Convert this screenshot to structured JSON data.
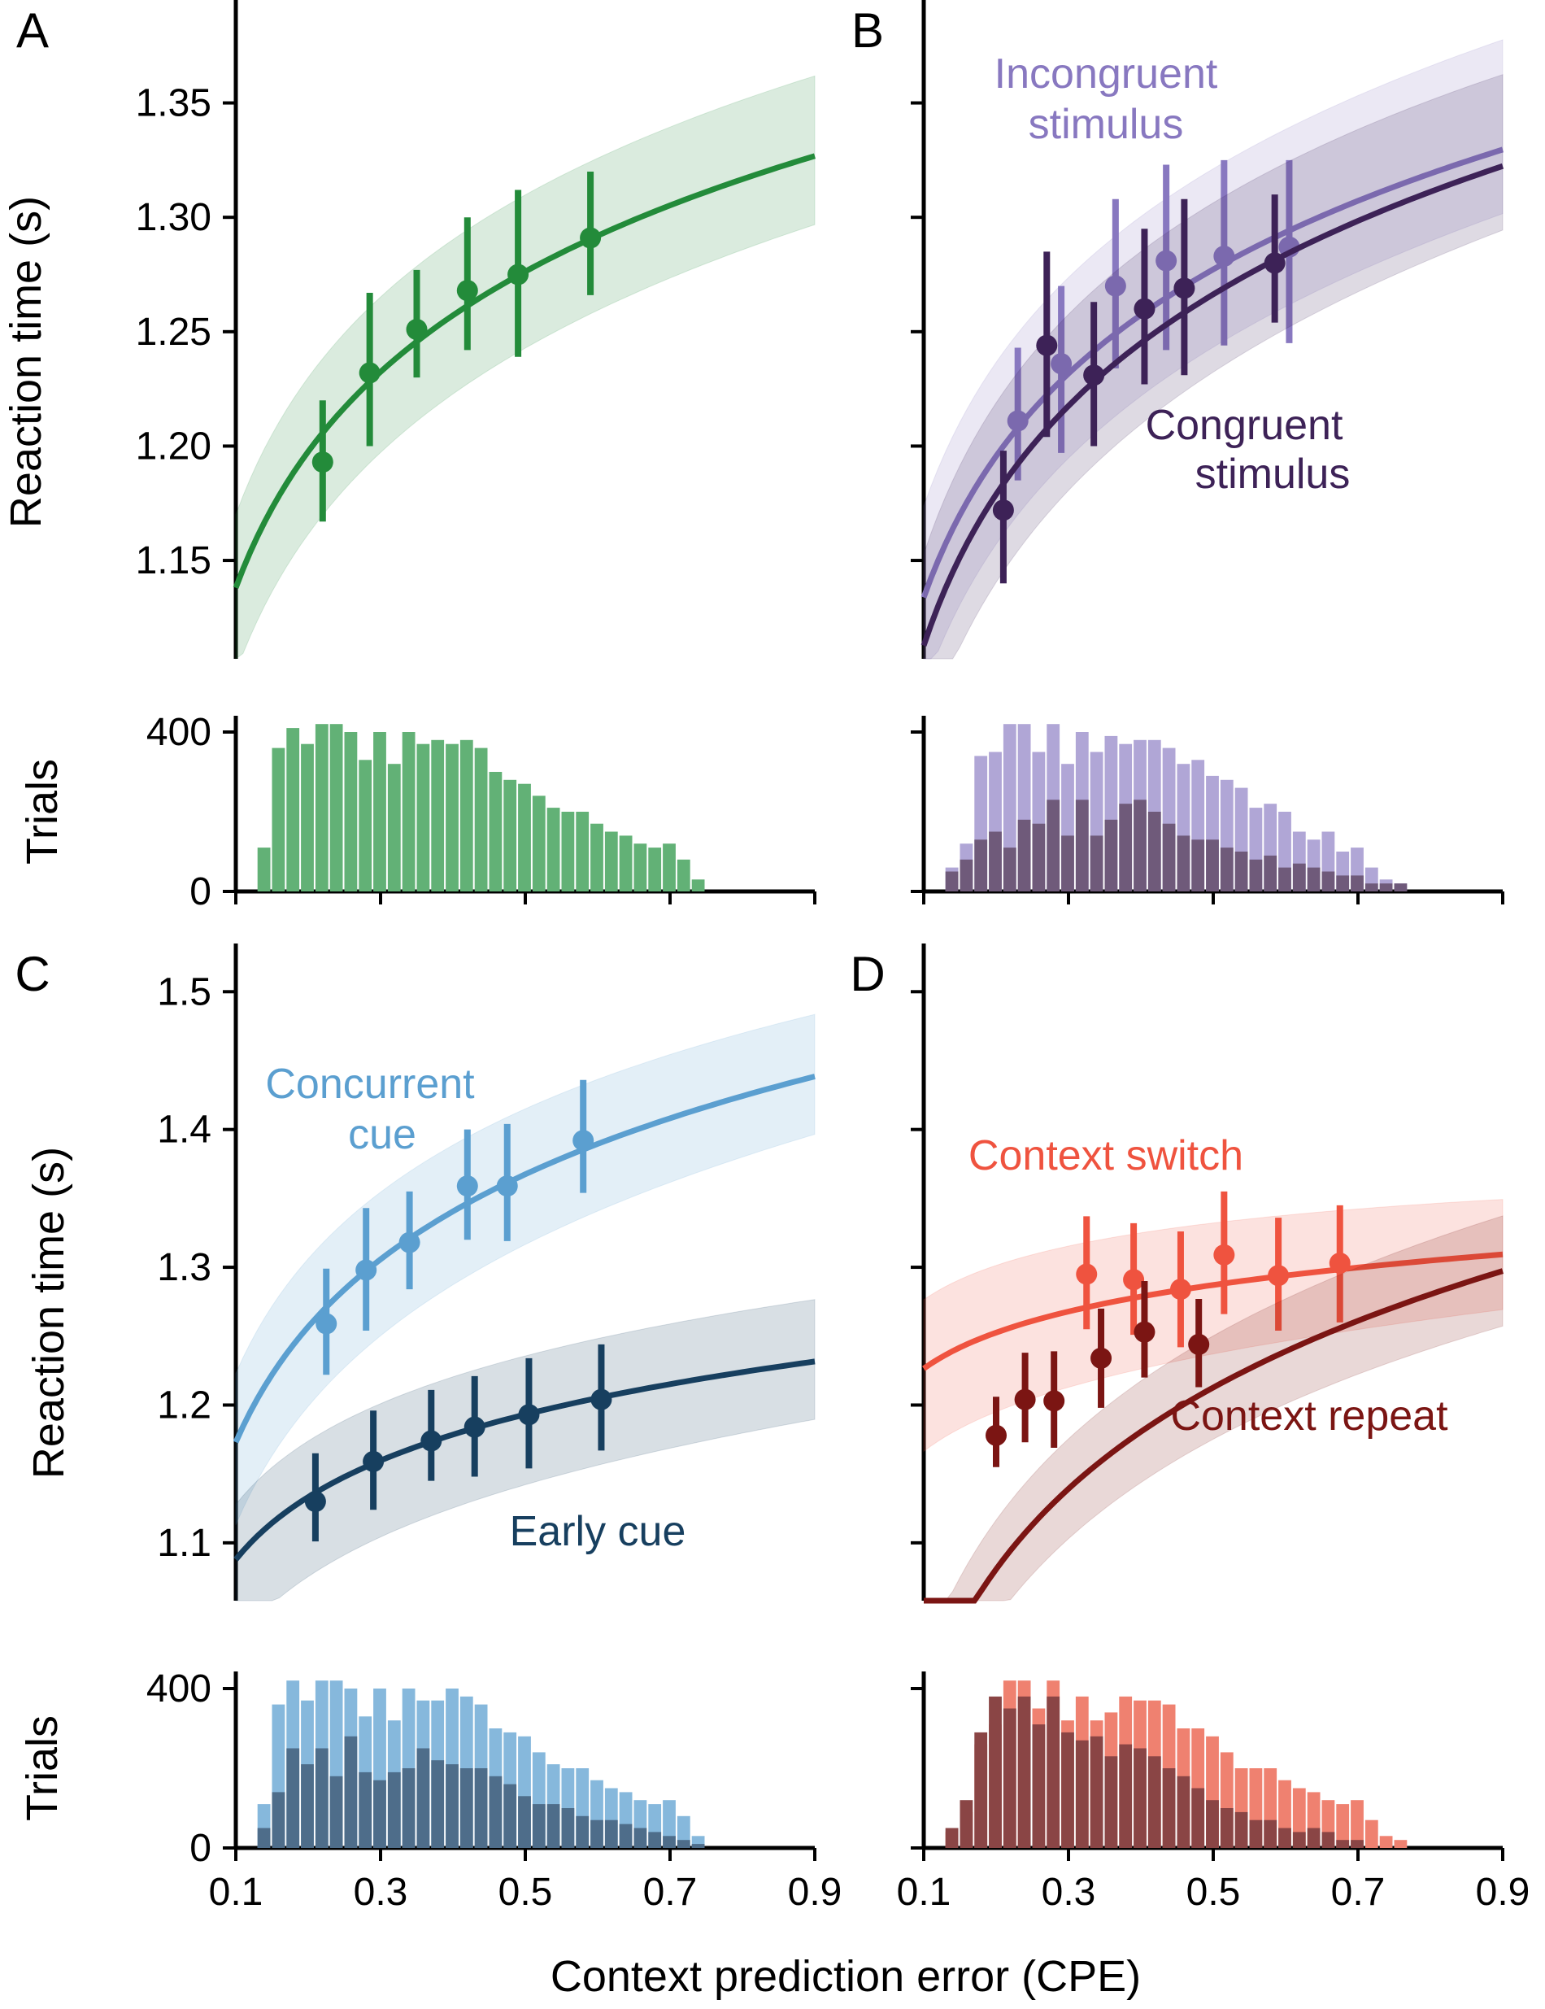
{
  "figure": {
    "xlabel": "Context prediction error (CPE)",
    "x_ticks": [
      "0.1",
      "0.3",
      "0.5",
      "0.7",
      "0.9"
    ]
  },
  "chart_data": [
    {
      "panel": "A",
      "type": "line",
      "ylabel": "Reaction time (s)",
      "xlim": [
        0.1,
        0.9
      ],
      "ylim": [
        1.107,
        1.395
      ],
      "yticks": [
        1.15,
        1.2,
        1.25,
        1.3,
        1.35
      ],
      "ytick_labels": [
        "1.15",
        "1.20",
        "1.25",
        "1.30",
        "1.35"
      ],
      "grid": false,
      "series": [
        {
          "color": "#238b3a",
          "fit": {
            "a": 1.3268,
            "b": 0.0859,
            "lo_w": [
              0.037,
              0.03
            ],
            "hi_w": [
              0.032,
              0.035
            ]
          },
          "points": [
            {
              "x": 0.22,
              "y": 1.193,
              "lo": 1.167,
              "hi": 1.22
            },
            {
              "x": 0.285,
              "y": 1.232,
              "lo": 1.2,
              "hi": 1.267
            },
            {
              "x": 0.35,
              "y": 1.251,
              "lo": 1.23,
              "hi": 1.277
            },
            {
              "x": 0.42,
              "y": 1.268,
              "lo": 1.242,
              "hi": 1.3
            },
            {
              "x": 0.49,
              "y": 1.275,
              "lo": 1.239,
              "hi": 1.312
            },
            {
              "x": 0.59,
              "y": 1.291,
              "lo": 1.266,
              "hi": 1.32
            }
          ]
        }
      ],
      "labels": []
    },
    {
      "panel": "B",
      "type": "line",
      "ylabel": "",
      "xlim": [
        0.1,
        0.9
      ],
      "ylim": [
        1.107,
        1.395
      ],
      "yticks": [
        1.15,
        1.2,
        1.25,
        1.3,
        1.35
      ],
      "ytick_labels": [],
      "grid": false,
      "series": [
        {
          "name": "Incongruent stimulus",
          "color": "#8878c0",
          "fit": {
            "a": 1.3296,
            "b": 0.0891,
            "lo_w": [
              0.04,
              0.028
            ],
            "hi_w": [
              0.04,
              0.048
            ]
          },
          "points": [
            {
              "x": 0.23,
              "y": 1.211,
              "lo": 1.185,
              "hi": 1.243
            },
            {
              "x": 0.29,
              "y": 1.236,
              "lo": 1.197,
              "hi": 1.27
            },
            {
              "x": 0.365,
              "y": 1.27,
              "lo": 1.234,
              "hi": 1.308
            },
            {
              "x": 0.435,
              "y": 1.281,
              "lo": 1.242,
              "hi": 1.323
            },
            {
              "x": 0.515,
              "y": 1.283,
              "lo": 1.244,
              "hi": 1.325
            },
            {
              "x": 0.605,
              "y": 1.287,
              "lo": 1.245,
              "hi": 1.325
            }
          ]
        },
        {
          "name": "Congruent stimulus",
          "color": "#3d2257",
          "fit": {
            "a": 1.3224,
            "b": 0.0954,
            "lo_w": [
              0.04,
              0.028
            ],
            "hi_w": [
              0.04,
              0.04
            ]
          },
          "points": [
            {
              "x": 0.21,
              "y": 1.172,
              "lo": 1.14,
              "hi": 1.198
            },
            {
              "x": 0.27,
              "y": 1.244,
              "lo": 1.204,
              "hi": 1.285
            },
            {
              "x": 0.335,
              "y": 1.231,
              "lo": 1.2,
              "hi": 1.263
            },
            {
              "x": 0.405,
              "y": 1.26,
              "lo": 1.227,
              "hi": 1.295
            },
            {
              "x": 0.46,
              "y": 1.269,
              "lo": 1.231,
              "hi": 1.308
            },
            {
              "x": 0.585,
              "y": 1.28,
              "lo": 1.254,
              "hi": 1.31
            }
          ]
        }
      ],
      "labels": [
        {
          "series": 0,
          "lines": [
            "Incongruent",
            "stimulus"
          ]
        },
        {
          "series": 1,
          "lines": [
            "Congruent",
            "stimulus"
          ]
        }
      ]
    },
    {
      "panel": "C",
      "type": "line",
      "ylabel": "Reaction time (s)",
      "xlim": [
        0.1,
        0.9
      ],
      "ylim": [
        1.058,
        1.535
      ],
      "yticks": [
        1.1,
        1.2,
        1.3,
        1.4,
        1.5
      ],
      "ytick_labels": [
        "1.1",
        "1.2",
        "1.3",
        "1.4",
        "1.5"
      ],
      "grid": false,
      "series": [
        {
          "name": "Concurrent cue",
          "color": "#5b9fd0",
          "fit": {
            "a": 1.4385,
            "b": 0.1208,
            "lo_w": [
              0.06,
              0.042
            ],
            "hi_w": [
              0.05,
              0.045
            ]
          },
          "points": [
            {
              "x": 0.225,
              "y": 1.259,
              "lo": 1.222,
              "hi": 1.299
            },
            {
              "x": 0.28,
              "y": 1.298,
              "lo": 1.254,
              "hi": 1.343
            },
            {
              "x": 0.34,
              "y": 1.318,
              "lo": 1.284,
              "hi": 1.355
            },
            {
              "x": 0.42,
              "y": 1.359,
              "lo": 1.32,
              "hi": 1.4
            },
            {
              "x": 0.475,
              "y": 1.359,
              "lo": 1.319,
              "hi": 1.404
            },
            {
              "x": 0.58,
              "y": 1.392,
              "lo": 1.354,
              "hi": 1.436
            }
          ]
        },
        {
          "name": "Early cue",
          "color": "#173f5f",
          "fit": {
            "a": 1.2316,
            "b": 0.0654,
            "lo_w": [
              0.06,
              0.042
            ],
            "hi_w": [
              0.04,
              0.045
            ]
          },
          "points": [
            {
              "x": 0.21,
              "y": 1.13,
              "lo": 1.101,
              "hi": 1.165
            },
            {
              "x": 0.29,
              "y": 1.159,
              "lo": 1.124,
              "hi": 1.196
            },
            {
              "x": 0.37,
              "y": 1.174,
              "lo": 1.145,
              "hi": 1.211
            },
            {
              "x": 0.43,
              "y": 1.184,
              "lo": 1.148,
              "hi": 1.221
            },
            {
              "x": 0.505,
              "y": 1.193,
              "lo": 1.154,
              "hi": 1.234
            },
            {
              "x": 0.605,
              "y": 1.204,
              "lo": 1.167,
              "hi": 1.244
            }
          ]
        }
      ],
      "labels": [
        {
          "series": 0,
          "lines": [
            "Concurrent",
            "cue"
          ]
        },
        {
          "series": 1,
          "lines": [
            "Early cue"
          ]
        }
      ]
    },
    {
      "panel": "D",
      "type": "line",
      "ylabel": "",
      "xlim": [
        0.1,
        0.9
      ],
      "ylim": [
        1.058,
        1.535
      ],
      "yticks": [
        1.1,
        1.2,
        1.3,
        1.4,
        1.5
      ],
      "ytick_labels": [],
      "grid": false,
      "series": [
        {
          "name": "Context switch",
          "color": "#ef533f",
          "fit": {
            "a": 1.3093,
            "b": 0.0377,
            "lo_w": [
              0.06,
              0.04
            ],
            "hi_w": [
              0.05,
              0.04
            ]
          },
          "points": [
            {
              "x": 0.325,
              "y": 1.295,
              "lo": 1.255,
              "hi": 1.337
            },
            {
              "x": 0.39,
              "y": 1.291,
              "lo": 1.251,
              "hi": 1.332
            },
            {
              "x": 0.455,
              "y": 1.284,
              "lo": 1.242,
              "hi": 1.326
            },
            {
              "x": 0.515,
              "y": 1.309,
              "lo": 1.266,
              "hi": 1.355
            },
            {
              "x": 0.59,
              "y": 1.294,
              "lo": 1.254,
              "hi": 1.336
            },
            {
              "x": 0.675,
              "y": 1.303,
              "lo": 1.26,
              "hi": 1.345
            }
          ]
        },
        {
          "name": "Context repeat",
          "color": "#7b1513",
          "fit": {
            "a": 1.2973,
            "b": 0.1439,
            "lo_w": [
              0.035,
              0.04
            ],
            "hi_w": [
              0.035,
              0.04
            ]
          },
          "points": [
            {
              "x": 0.2,
              "y": 1.178,
              "lo": 1.155,
              "hi": 1.206
            },
            {
              "x": 0.24,
              "y": 1.204,
              "lo": 1.173,
              "hi": 1.238
            },
            {
              "x": 0.28,
              "y": 1.203,
              "lo": 1.169,
              "hi": 1.239
            },
            {
              "x": 0.345,
              "y": 1.234,
              "lo": 1.198,
              "hi": 1.27
            },
            {
              "x": 0.405,
              "y": 1.253,
              "lo": 1.22,
              "hi": 1.29
            },
            {
              "x": 0.48,
              "y": 1.244,
              "lo": 1.213,
              "hi": 1.277
            }
          ]
        }
      ],
      "labels": [
        {
          "series": 0,
          "lines": [
            "Context switch"
          ]
        },
        {
          "series": 1,
          "lines": [
            "Context repeat"
          ]
        }
      ]
    }
  ],
  "histograms": [
    {
      "panel": "A",
      "ylabel": "Trials",
      "ytick_labels": [
        "0",
        "400"
      ],
      "yticks": [
        0,
        400
      ],
      "ylim": [
        0,
        480
      ],
      "bin_start": 0.13,
      "bin_width": 0.02,
      "layers": [
        {
          "color": "#62b176",
          "counts": [
            110,
            360,
            410,
            370,
            420,
            420,
            400,
            330,
            400,
            320,
            400,
            370,
            380,
            370,
            380,
            360,
            300,
            280,
            270,
            240,
            210,
            200,
            200,
            170,
            150,
            140,
            120,
            110,
            120,
            80,
            30,
            0,
            0,
            0,
            0,
            0,
            0,
            0,
            0,
            0
          ]
        }
      ]
    },
    {
      "panel": "B",
      "ylabel": "",
      "ytick_labels": [],
      "yticks": [
        0,
        400
      ],
      "ylim": [
        0,
        480
      ],
      "bin_start": 0.13,
      "bin_width": 0.02,
      "layers": [
        {
          "color": "#b0a6d6",
          "counts": [
            60,
            120,
            340,
            350,
            420,
            420,
            350,
            420,
            320,
            400,
            350,
            390,
            370,
            380,
            380,
            360,
            320,
            330,
            290,
            280,
            260,
            210,
            220,
            200,
            150,
            130,
            150,
            100,
            110,
            60,
            30,
            20,
            0,
            0,
            0,
            0,
            0,
            0,
            0,
            0
          ]
        },
        {
          "color": "#6f5a7a",
          "counts": [
            50,
            80,
            130,
            150,
            110,
            180,
            170,
            230,
            140,
            230,
            140,
            180,
            220,
            230,
            200,
            170,
            140,
            130,
            130,
            110,
            100,
            80,
            90,
            60,
            70,
            60,
            50,
            40,
            40,
            20,
            20,
            20,
            0,
            0,
            0,
            0,
            0,
            0,
            0,
            0
          ]
        }
      ]
    },
    {
      "panel": "C",
      "ylabel": "Trials",
      "ytick_labels": [
        "0",
        "400"
      ],
      "yticks": [
        0,
        400
      ],
      "ylim": [
        0,
        480
      ],
      "bin_start": 0.13,
      "bin_width": 0.02,
      "layers": [
        {
          "color": "#86b8dc",
          "counts": [
            110,
            360,
            420,
            370,
            420,
            420,
            400,
            330,
            400,
            320,
            400,
            370,
            370,
            400,
            380,
            360,
            300,
            290,
            280,
            240,
            210,
            200,
            200,
            170,
            150,
            140,
            120,
            110,
            120,
            80,
            30,
            0,
            0,
            0,
            0,
            0,
            0,
            0,
            0,
            0
          ]
        },
        {
          "color": "#4e6d8a",
          "counts": [
            50,
            140,
            250,
            210,
            250,
            180,
            280,
            190,
            170,
            190,
            200,
            250,
            220,
            210,
            200,
            200,
            180,
            160,
            130,
            110,
            110,
            100,
            80,
            70,
            70,
            60,
            50,
            40,
            30,
            20,
            10,
            0,
            0,
            0,
            0,
            0,
            0,
            0,
            0,
            0
          ]
        }
      ]
    },
    {
      "panel": "D",
      "ylabel": "",
      "ytick_labels": [],
      "yticks": [
        0,
        400
      ],
      "ylim": [
        0,
        480
      ],
      "bin_start": 0.13,
      "bin_width": 0.02,
      "layers": [
        {
          "color": "#ef8170",
          "counts": [
            40,
            90,
            260,
            310,
            420,
            420,
            350,
            420,
            320,
            380,
            320,
            340,
            380,
            370,
            370,
            360,
            300,
            300,
            280,
            240,
            200,
            200,
            200,
            170,
            150,
            140,
            120,
            110,
            120,
            70,
            30,
            20,
            0,
            0,
            0,
            0,
            0,
            0,
            0,
            0
          ]
        },
        {
          "color": "#8a4545",
          "counts": [
            50,
            120,
            290,
            380,
            350,
            380,
            310,
            380,
            290,
            270,
            280,
            230,
            260,
            250,
            230,
            200,
            180,
            150,
            120,
            100,
            90,
            70,
            70,
            50,
            40,
            50,
            40,
            20,
            20,
            0,
            0,
            0,
            0,
            0,
            0,
            0,
            0,
            0,
            0,
            0
          ]
        }
      ]
    }
  ]
}
